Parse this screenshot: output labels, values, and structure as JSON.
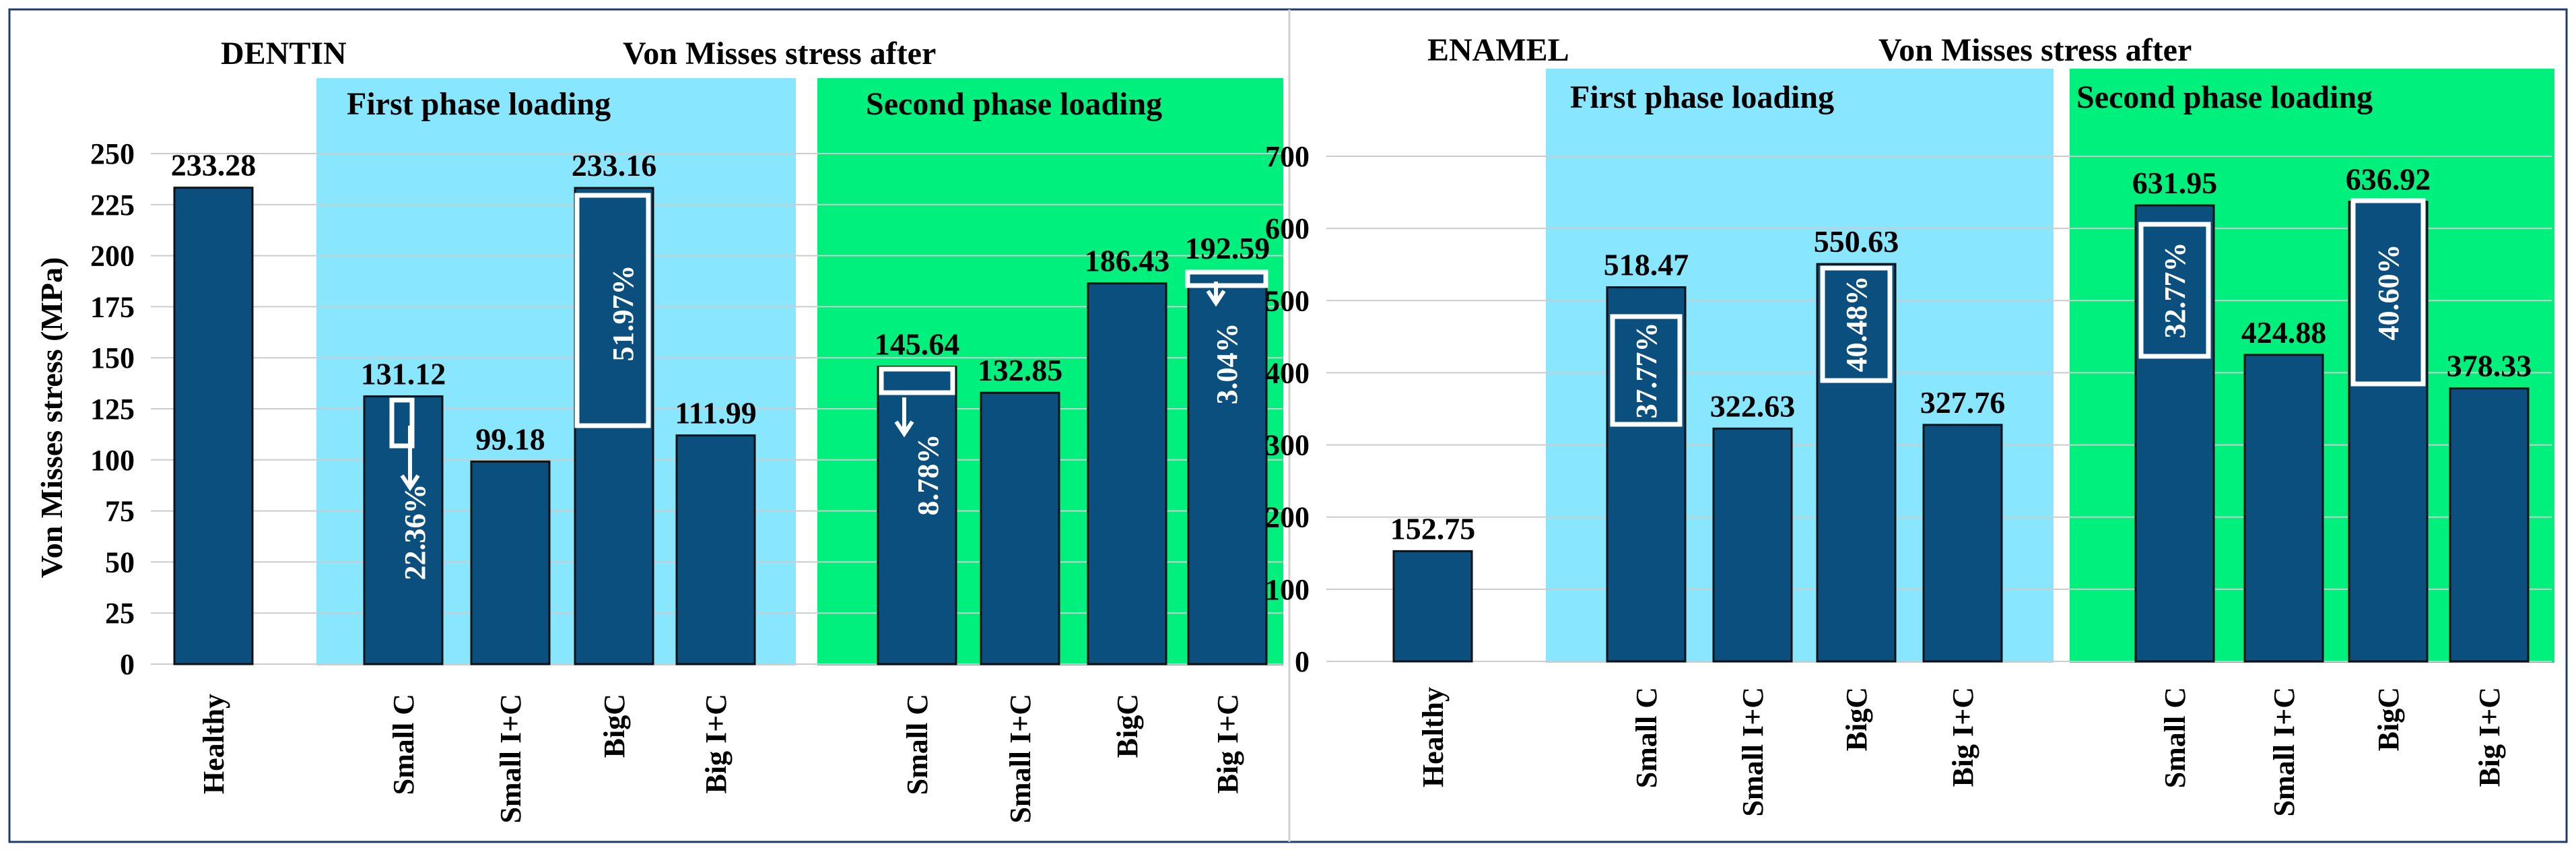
{
  "colors": {
    "bar": "#0b4f7f",
    "bar_stroke": "#111111",
    "first_phase_bg": "#88e6ff",
    "second_phase_bg": "#00f07d",
    "grid": "#cccccc",
    "frame": "#1f3b6b"
  },
  "chart_data": [
    {
      "type": "bar",
      "section_label": "DENTIN",
      "title": "Von Misses stress after",
      "group_labels": [
        "First phase loading",
        "Second phase loading"
      ],
      "ylabel": "Von Misses stress (MPa)",
      "ylim": [
        0,
        250
      ],
      "yticks": [
        "250",
        "225",
        "200",
        "175",
        "150",
        "125",
        "100",
        "75",
        "50",
        "25",
        "0"
      ],
      "grid": true,
      "categories": [
        "Healthy",
        "Small C",
        "Small I+C",
        "BigC",
        "Big I+C",
        "Small C",
        "Small I+C",
        "BigC",
        "Big I+C"
      ],
      "values": [
        233.28,
        131.12,
        99.18,
        233.16,
        111.99,
        145.64,
        132.85,
        186.43,
        192.59
      ],
      "value_labels": [
        "233.28",
        "131.12",
        "99.18",
        "233.16",
        "111.99",
        "145.64",
        "132.85",
        "186.43",
        "192.59"
      ],
      "annotations": [
        "22.36%",
        "51.97%",
        "8.78%",
        "3.04%"
      ]
    },
    {
      "type": "bar",
      "section_label": "ENAMEL",
      "title": "Von Misses stress after",
      "group_labels": [
        "First phase loading",
        "Second phase loading"
      ],
      "ylabel": "",
      "ylim": [
        0,
        700
      ],
      "yticks": [
        "700",
        "600",
        "500",
        "400",
        "300",
        "200",
        "100",
        "0"
      ],
      "grid": true,
      "categories": [
        "Healthy",
        "Small C",
        "Small I+C",
        "BigC",
        "Big I+C",
        "Small C",
        "Small I+C",
        "BigC",
        "Big I+C"
      ],
      "values": [
        152.75,
        518.47,
        322.63,
        550.63,
        327.76,
        631.95,
        424.88,
        636.92,
        378.33
      ],
      "value_labels": [
        "152.75",
        "518.47",
        "322.63",
        "550.63",
        "327.76",
        "631.95",
        "424.88",
        "636.92",
        "378.33"
      ],
      "annotations": [
        "37.77%",
        "40.48%",
        "32.77%",
        "40.60%"
      ]
    }
  ]
}
